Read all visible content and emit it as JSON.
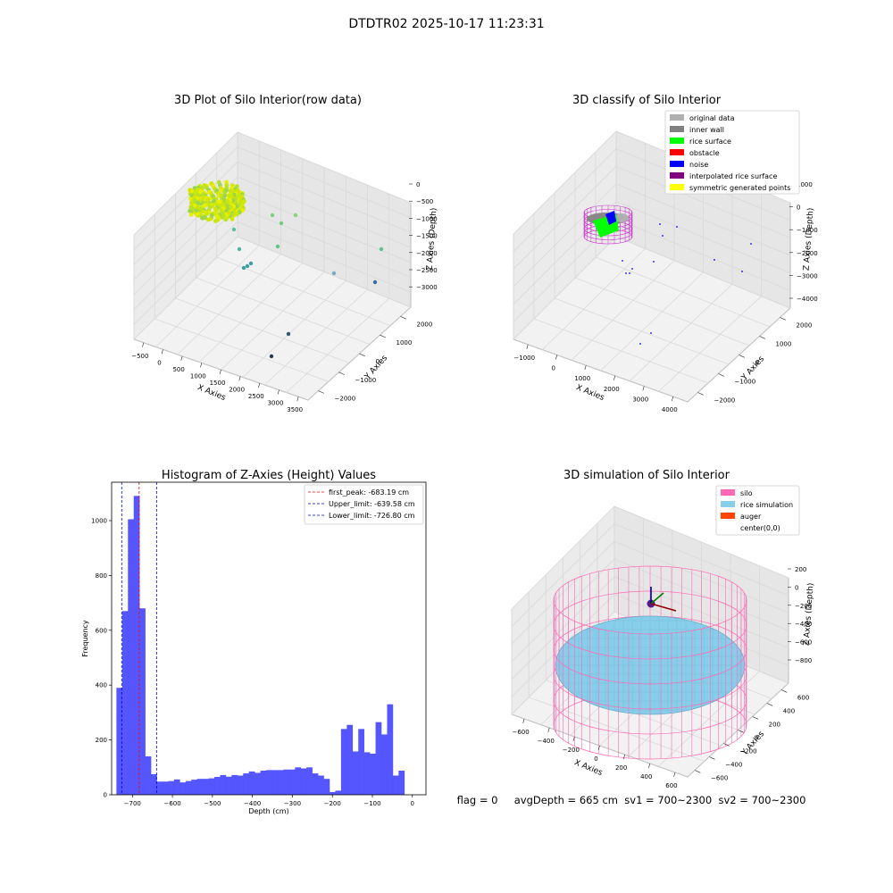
{
  "figure": {
    "suptitle": "DTDTR02 2025-10-17 11:23:31",
    "status_line": "flag = 0     avgDepth = 665 cm  sv1 = 700~2300  sv2 = 700~2300"
  },
  "colors": {
    "hist_bar": "#4d4dff",
    "first_peak_line": "#ff0000",
    "limit_line": "#0000cc",
    "silo_wire": "#ff69b4",
    "rice_sim": "#87ceeb",
    "auger": "#ff4500"
  },
  "chart_data": [
    {
      "type": "scatter",
      "subtype": "3d",
      "title": "3D Plot of Silo Interior(row data)",
      "xlabel": "X Axies",
      "ylabel": "Y Axies",
      "zlabel": "Z Axies (Depth)",
      "x_ticks": [
        "−500",
        "0",
        "500",
        "1000",
        "1500",
        "2000",
        "2500",
        "3000",
        "3500"
      ],
      "y_ticks": [
        "−2000",
        "−1000",
        "0",
        "1000",
        "2000"
      ],
      "z_ticks": [
        "0",
        "−500",
        "−1000",
        "−1500",
        "−2000",
        "−2500",
        "−3000"
      ],
      "grid": true,
      "note": "dense yellow-green ring of points near x≈-300..0 plus sparse outlier points"
    },
    {
      "type": "scatter",
      "subtype": "3d",
      "title": "3D classify of Silo Interior",
      "xlabel": "X Axies",
      "ylabel": "Y Axies",
      "zlabel": "Z Axies (Depth)",
      "x_ticks": [
        "−1000",
        "0",
        "1000",
        "2000",
        "3000",
        "4000"
      ],
      "y_ticks": [
        "−2000",
        "−1000",
        "0",
        "1000",
        "2000"
      ],
      "z_ticks": [
        "1000",
        "0",
        "−1000",
        "−2000",
        "−3000",
        "−4000"
      ],
      "grid": true,
      "legend_position": "upper-right",
      "legend": [
        {
          "label": "original data",
          "color": "#b0b0b0"
        },
        {
          "label": "inner wall",
          "color": "#808080"
        },
        {
          "label": "rice surface",
          "color": "#00ff00"
        },
        {
          "label": "obstacle",
          "color": "#ff0000"
        },
        {
          "label": "noise",
          "color": "#0000ff"
        },
        {
          "label": "interpolated rice surface",
          "color": "#800080"
        },
        {
          "label": "symmetric generated points",
          "color": "#ffff00"
        }
      ]
    },
    {
      "type": "bar",
      "subtype": "histogram",
      "title": "Histogram of Z-Axies (Height) Values",
      "xlabel": "Depth (cm)",
      "ylabel": "Frequency",
      "xlim": [
        -752,
        34
      ],
      "ylim": [
        0,
        1140
      ],
      "x_ticks": [
        -700,
        -600,
        -500,
        -400,
        -300,
        -200,
        -100,
        0
      ],
      "x_tick_labels": [
        "−700",
        "−600",
        "−500",
        "−400",
        "−300",
        "−200",
        "−100",
        "0"
      ],
      "y_ticks": [
        0,
        200,
        400,
        600,
        800,
        1000
      ],
      "bin_start": -740,
      "bin_width": 14.4,
      "values": [
        390,
        670,
        1005,
        1090,
        680,
        140,
        75,
        48,
        48,
        50,
        56,
        45,
        50,
        55,
        58,
        58,
        60,
        65,
        72,
        66,
        72,
        70,
        78,
        85,
        80,
        88,
        90,
        90,
        90,
        92,
        92,
        100,
        96,
        100,
        78,
        70,
        58,
        10,
        15,
        240,
        255,
        158,
        240,
        155,
        150,
        265,
        220,
        330,
        70,
        88
      ],
      "vlines": [
        {
          "label": "first_peak: -683.19 cm",
          "x": -683.19,
          "color": "#ff0000"
        },
        {
          "label": "Upper_limit: -639.58 cm",
          "x": -639.58,
          "color": "#0000cc"
        },
        {
          "label": "Lower_limit: -726.80 cm",
          "x": -726.8,
          "color": "#0000cc"
        }
      ],
      "legend_position": "upper-right",
      "grid": false
    },
    {
      "type": "scatter",
      "subtype": "3d-simulation",
      "title": "3D simulation of Silo Interior",
      "xlabel": "X Axies",
      "ylabel": "Y Axies",
      "zlabel": "Z Axies (Depth)",
      "x_ticks": [
        "−600",
        "−400",
        "−200",
        "0",
        "200",
        "400",
        "600"
      ],
      "y_ticks": [
        "−600",
        "−400",
        "−200",
        "0",
        "200",
        "400",
        "600"
      ],
      "z_ticks": [
        "200",
        "0",
        "−200",
        "−400",
        "−600",
        "−800"
      ],
      "grid": true,
      "legend_position": "upper-right",
      "legend": [
        {
          "label": "silo",
          "color": "#ff69b4"
        },
        {
          "label": "rice simulation",
          "color": "#87ceeb"
        },
        {
          "label": "auger",
          "color": "#ff4500"
        },
        {
          "label": "center(0,0)",
          "color": "none"
        }
      ]
    }
  ]
}
